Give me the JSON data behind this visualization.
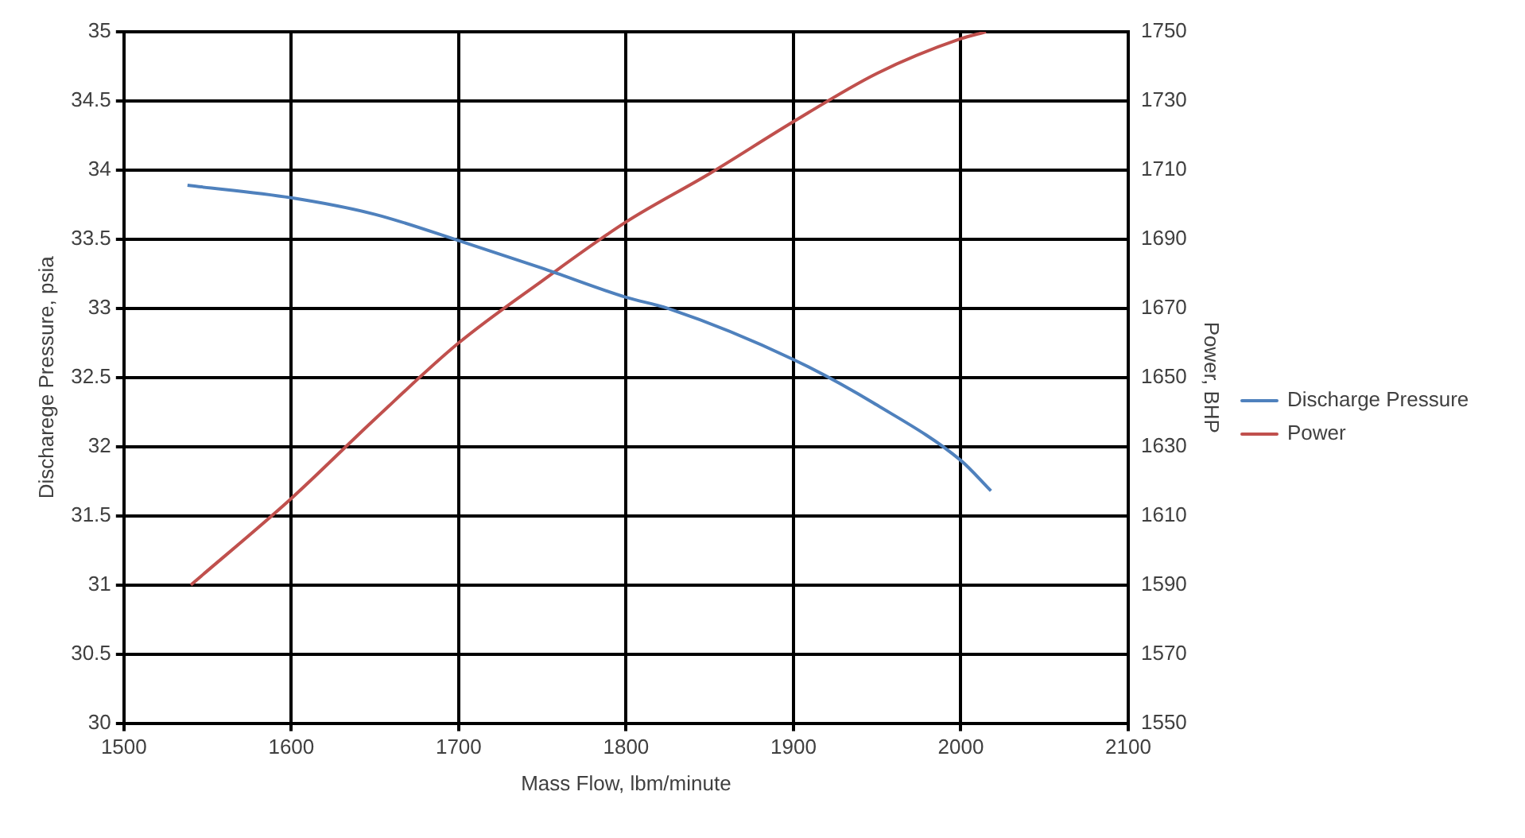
{
  "chart_data": {
    "type": "line",
    "xlabel": "Mass Flow, lbm/minute",
    "ylabel": "Discharege Pressure, psia",
    "y2label": "Power, BHP",
    "xlim": [
      1500,
      2100
    ],
    "xticks": [
      1500,
      1600,
      1700,
      1800,
      1900,
      2000,
      2100
    ],
    "ylim": [
      30,
      35
    ],
    "yticks": [
      30,
      30.5,
      31,
      31.5,
      32,
      32.5,
      33,
      33.5,
      34,
      34.5,
      35
    ],
    "y2lim": [
      1550,
      1750
    ],
    "y2ticks": [
      1550,
      1570,
      1590,
      1610,
      1630,
      1650,
      1670,
      1690,
      1710,
      1730,
      1750
    ],
    "grid": true,
    "legend": "right",
    "marker": "none",
    "line_style": "solid",
    "series": [
      {
        "name": "Discharge Pressure",
        "color": "#4f81bd",
        "x": [
          1538,
          1600,
          1650,
          1700,
          1750,
          1800,
          1825,
          1900,
          1950,
          2000,
          2018
        ],
        "values": [
          33.89,
          33.8,
          33.68,
          33.49,
          33.29,
          33.08,
          33.0,
          32.63,
          32.3,
          31.9,
          31.68
        ]
      },
      {
        "name": "Power",
        "color": "#c0504d",
        "axis": "y2",
        "x": [
          1540,
          1600,
          1650,
          1700,
          1750,
          1800,
          1850,
          1900,
          1950,
          2000,
          2015
        ],
        "values": [
          1590,
          1615,
          1638,
          1660,
          1678,
          1695,
          1709,
          1724,
          1738,
          1748,
          1750
        ]
      }
    ]
  }
}
